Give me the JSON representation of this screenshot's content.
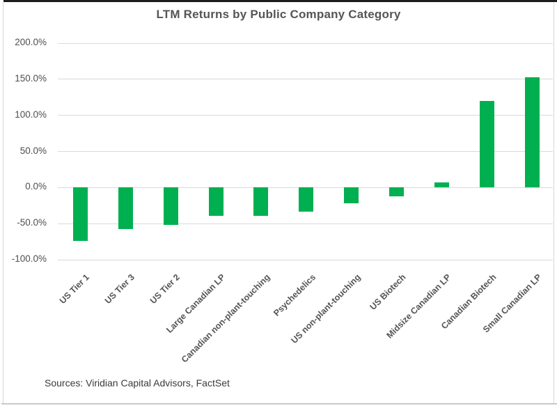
{
  "chart_data": {
    "type": "bar",
    "title": "LTM Returns by Public Company Category",
    "categories": [
      "US Tier 1",
      "US Tier 3",
      "US Tier 2",
      "Large Canadian LP",
      "Canadian non-plant-touching",
      "Psychedelics",
      "US non-plant-touching",
      "US Biotech",
      "Midsize Canadian LP",
      "Canadian Biotech",
      "Small Canadian LP"
    ],
    "values": [
      -74,
      -58,
      -52,
      -39,
      -39,
      -33,
      -22,
      -12,
      7,
      120,
      153
    ],
    "value_unit": "percent",
    "xlabel": "",
    "ylabel": "",
    "ylim": [
      -100,
      200
    ],
    "ytick_step": 50,
    "ytick_labels": [
      "200.0%",
      "150.0%",
      "100.0%",
      "50.0%",
      "0.0%",
      "-50.0%",
      "-100.0%"
    ],
    "grid": "horizontal",
    "legend": "none",
    "bar_color": "#00B050",
    "grid_color": "#D9D9D9",
    "text_color": "#555555",
    "source_note": "Sources: Viridian Capital Advisors, FactSet"
  }
}
